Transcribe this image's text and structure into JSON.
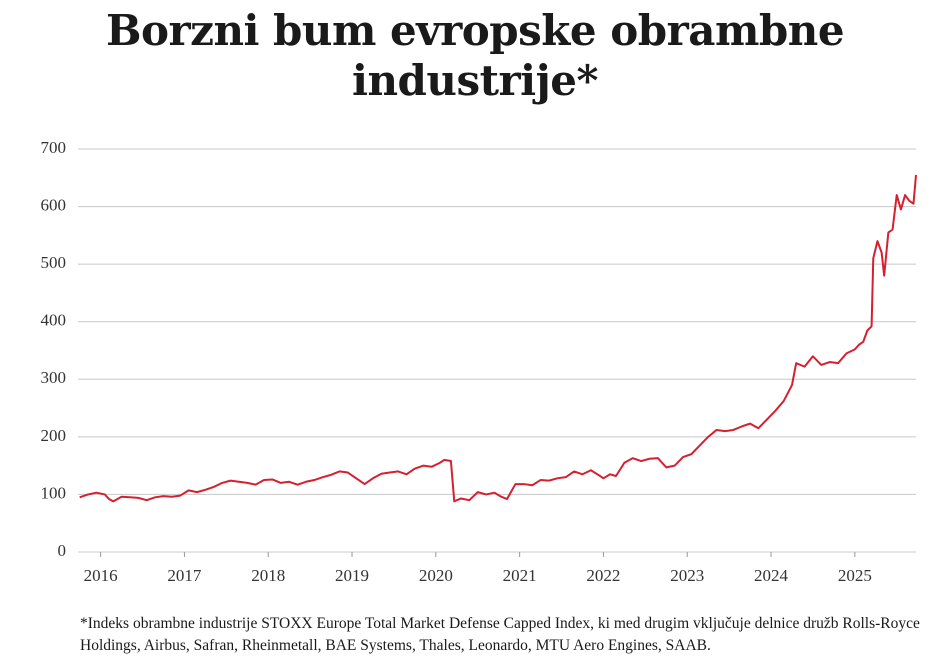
{
  "chart_data": {
    "type": "line",
    "title": "Borzni bum evropske obrambne industrije*",
    "footnote": "*Indeks obrambne industrije STOXX Europe Total Market Defense Capped Index, ki med drugim vključuje delnice družb Rolls-Royce Holdings,  Airbus, Safran, Rheinmetall,  BAE Systems, Thales, Leonardo, MTU Aero Engines, SAAB.",
    "xlim": [
      2015.73,
      2025.73
    ],
    "xticks": [
      2016,
      2017,
      2018,
      2019,
      2020,
      2021,
      2022,
      2023,
      2024,
      2025
    ],
    "ylim": [
      0,
      700
    ],
    "yticks": [
      0,
      100,
      200,
      300,
      400,
      500,
      600,
      700
    ],
    "grid": true,
    "series": [
      {
        "color": "#d42030",
        "x": [
          2015.75,
          2015.85,
          2015.95,
          2016.05,
          2016.1,
          2016.15,
          2016.25,
          2016.35,
          2016.45,
          2016.55,
          2016.65,
          2016.75,
          2016.85,
          2016.95,
          2017.05,
          2017.15,
          2017.25,
          2017.35,
          2017.45,
          2017.55,
          2017.65,
          2017.75,
          2017.85,
          2017.95,
          2018.05,
          2018.15,
          2018.25,
          2018.35,
          2018.45,
          2018.55,
          2018.65,
          2018.75,
          2018.85,
          2018.95,
          2019.05,
          2019.15,
          2019.25,
          2019.35,
          2019.45,
          2019.55,
          2019.65,
          2019.75,
          2019.85,
          2019.95,
          2020.05,
          2020.1,
          2020.18,
          2020.22,
          2020.3,
          2020.4,
          2020.5,
          2020.6,
          2020.7,
          2020.78,
          2020.85,
          2020.95,
          2021.05,
          2021.15,
          2021.25,
          2021.35,
          2021.45,
          2021.55,
          2021.65,
          2021.75,
          2021.85,
          2021.95,
          2022.0,
          2022.08,
          2022.15,
          2022.25,
          2022.35,
          2022.45,
          2022.55,
          2022.65,
          2022.75,
          2022.85,
          2022.95,
          2023.05,
          2023.15,
          2023.25,
          2023.35,
          2023.45,
          2023.55,
          2023.65,
          2023.75,
          2023.85,
          2023.95,
          2024.05,
          2024.15,
          2024.25,
          2024.3,
          2024.4,
          2024.5,
          2024.6,
          2024.7,
          2024.8,
          2024.9,
          2025.0,
          2025.05,
          2025.1,
          2025.15,
          2025.2,
          2025.22,
          2025.27,
          2025.32,
          2025.35,
          2025.4,
          2025.45,
          2025.5,
          2025.55,
          2025.6,
          2025.65,
          2025.7,
          2025.73
        ],
        "values": [
          95,
          100,
          103,
          100,
          92,
          88,
          96,
          95,
          94,
          90,
          95,
          97,
          96,
          98,
          107,
          104,
          108,
          113,
          120,
          124,
          122,
          120,
          117,
          125,
          126,
          120,
          122,
          117,
          122,
          125,
          130,
          134,
          140,
          138,
          128,
          118,
          128,
          136,
          138,
          140,
          135,
          145,
          150,
          148,
          155,
          160,
          158,
          88,
          93,
          90,
          104,
          100,
          103,
          96,
          92,
          118,
          118,
          116,
          125,
          124,
          128,
          130,
          140,
          135,
          142,
          133,
          128,
          135,
          132,
          155,
          163,
          158,
          162,
          163,
          147,
          150,
          165,
          170,
          185,
          200,
          212,
          210,
          212,
          218,
          223,
          215,
          230,
          245,
          262,
          290,
          328,
          322,
          340,
          325,
          330,
          328,
          345,
          352,
          360,
          365,
          385,
          392,
          510,
          540,
          520,
          480,
          555,
          560,
          620,
          595,
          620,
          610,
          605,
          655
        ]
      }
    ]
  }
}
